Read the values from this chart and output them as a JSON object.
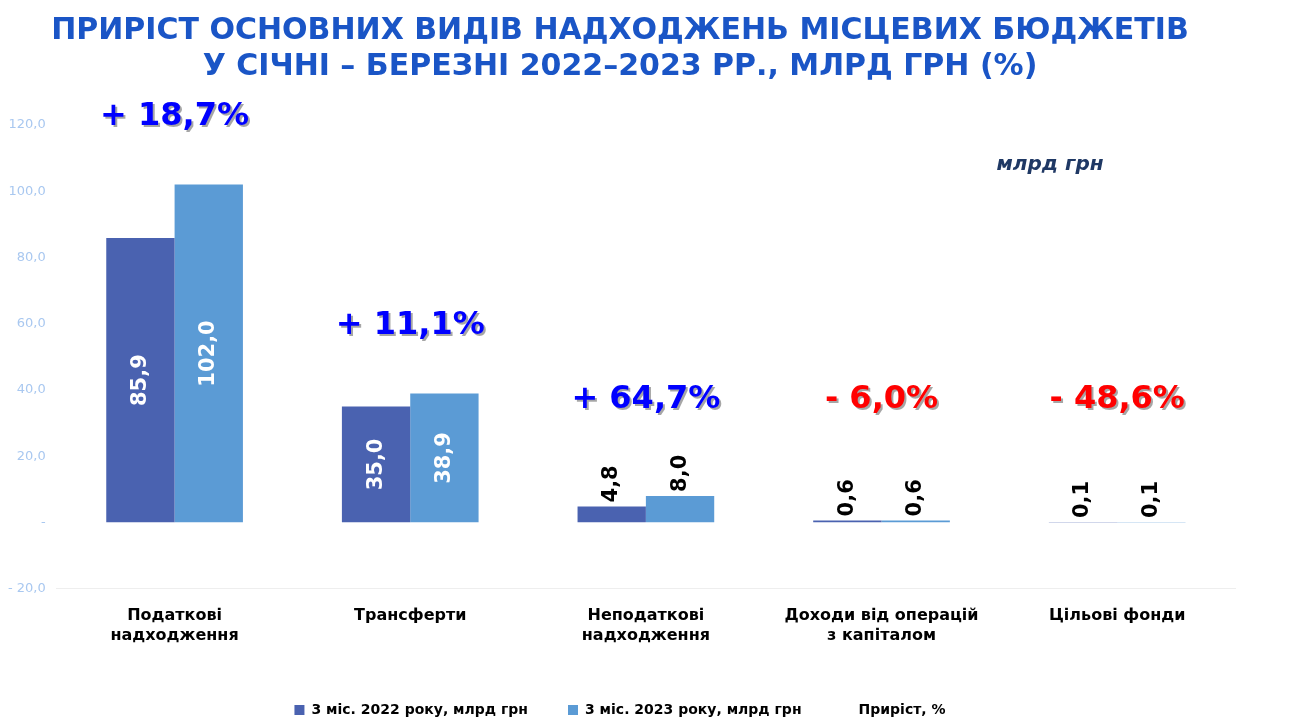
{
  "chart_data": {
    "type": "bar",
    "title": "ПРИРІСТ ОСНОВНИХ ВИДІВ НАДХОДЖЕНЬ МІСЦЕВИХ БЮДЖЕТІВ\nУ СІЧНІ – БЕРЕЗНІ 2022–2023 РР., МЛРД ГРН (%)",
    "categories": [
      "Податкові надходження",
      "Трансферти",
      "Неподаткові надходження",
      "Доходи від операцій з капіталом",
      "Цільові фонди"
    ],
    "series": [
      {
        "name": "3 міс. 2022 року, млрд грн",
        "color": "#4a62b0",
        "values": [
          85.9,
          35.0,
          4.8,
          0.6,
          0.1
        ],
        "value_labels": [
          "85,9",
          "35,0",
          "4,8",
          "0,6",
          "0,1"
        ]
      },
      {
        "name": "3 міс. 2023 року, млрд грн",
        "color": "#5b9bd5",
        "values": [
          102.0,
          38.9,
          8.0,
          0.6,
          0.1
        ],
        "value_labels": [
          "102,0",
          "38,9",
          "8,0",
          "0,6",
          "0,1"
        ]
      }
    ],
    "ylim": [
      -20,
      120
    ],
    "yticks": [
      {
        "value": -20,
        "label": "- 20,0"
      },
      {
        "value": 0,
        "label": "-"
      },
      {
        "value": 20,
        "label": "20,0"
      },
      {
        "value": 40,
        "label": "40,0"
      },
      {
        "value": 60,
        "label": "60,0"
      },
      {
        "value": 80,
        "label": "80,0"
      },
      {
        "value": 100,
        "label": "100,0"
      },
      {
        "value": 120,
        "label": "120,0"
      }
    ],
    "grid": false,
    "legend": "bottom",
    "annotations": [
      "млрд грн",
      "Приріст, %",
      "+ 18,7%",
      "+ 11,1%",
      "+ 64,7%",
      "- 6,0%",
      "- 48,6%"
    ]
  }
}
